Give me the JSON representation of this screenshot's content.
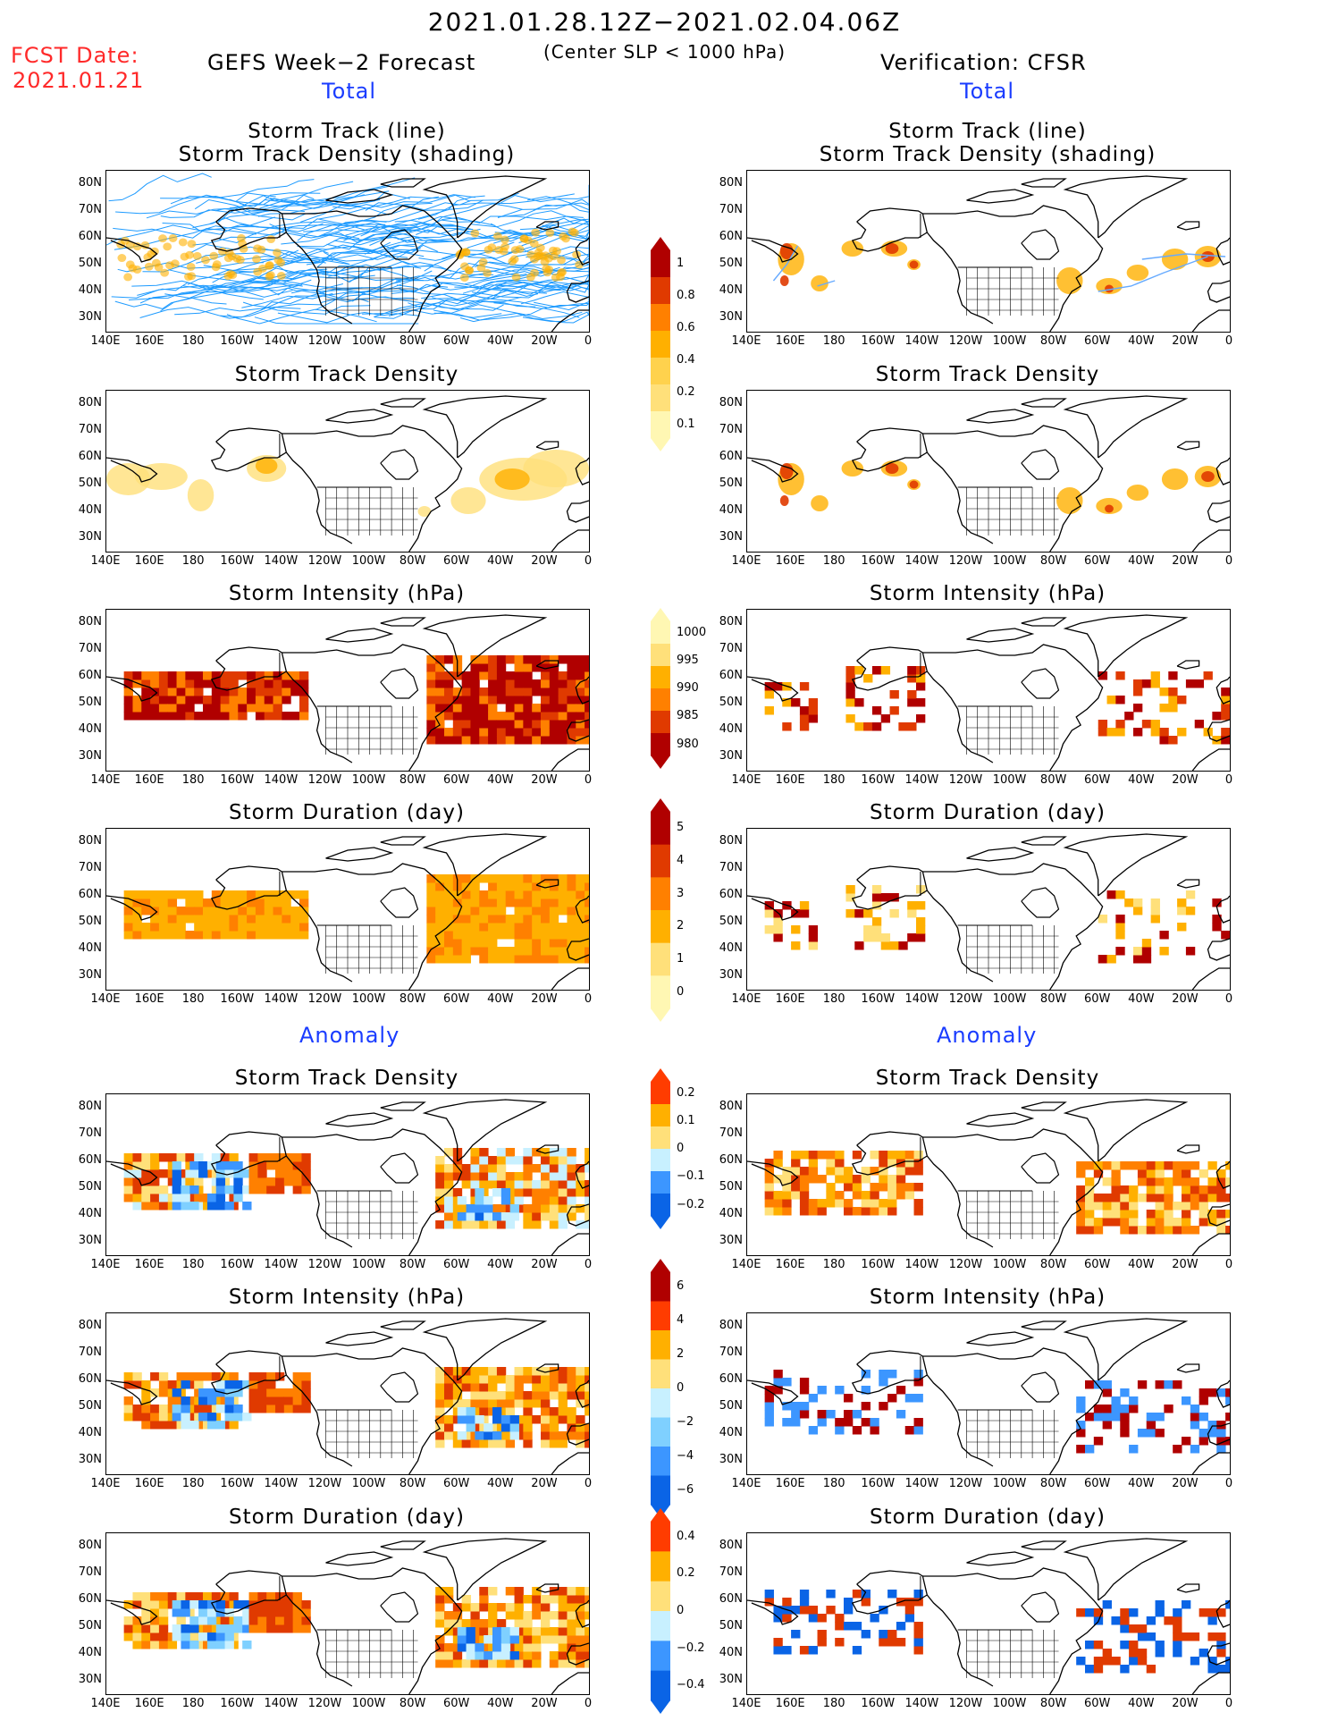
{
  "header": {
    "period": "2021.01.28.12Z−2021.02.04.06Z",
    "criterion": "(Center SLP < 1000 hPa)",
    "fcst_label": "FCST Date:",
    "fcst_date": "2021.01.21",
    "left_model": "GEFS Week−2 Forecast",
    "right_model": "Verification: CFSR",
    "total_label": "Total",
    "anomaly_label": "Anomaly"
  },
  "panels": {
    "track_title_1": "Storm Track (line)",
    "track_title_2": "Storm Track Density (shading)",
    "density": "Storm Track Density",
    "intensity": "Storm Intensity (hPa)",
    "duration": "Storm Duration (day)"
  },
  "axes": {
    "lat_ticks": [
      "80N",
      "70N",
      "60N",
      "50N",
      "40N",
      "30N"
    ],
    "lon_ticks": [
      "140E",
      "160E",
      "180",
      "160W",
      "140W",
      "120W",
      "100W",
      "80W",
      "60W",
      "40W",
      "20W",
      "0"
    ]
  },
  "colorbars": {
    "total_density": [
      "1",
      "0.8",
      "0.6",
      "0.4",
      "0.2",
      "0.1"
    ],
    "total_intensity": [
      "1000",
      "995",
      "990",
      "985",
      "980"
    ],
    "total_duration": [
      "5",
      "4",
      "3",
      "2",
      "1",
      "0"
    ],
    "anom_density": [
      "0.2",
      "0.1",
      "0",
      "−0.1",
      "−0.2"
    ],
    "anom_intensity": [
      "6",
      "4",
      "2",
      "0",
      "−2",
      "−4",
      "−6"
    ],
    "anom_duration": [
      "0.4",
      "0.2",
      "0",
      "−0.2",
      "−0.4"
    ]
  },
  "colors": {
    "warm": [
      "#fff7b3",
      "#ffe07a",
      "#ffb000",
      "#ff8000",
      "#e03a00",
      "#b00000"
    ],
    "cool": [
      "#c8f0ff",
      "#7fd0ff",
      "#3c96ff",
      "#0a64e6"
    ],
    "track_gefs": "#1e9bff",
    "track_cfsr": "#66aaff"
  }
}
